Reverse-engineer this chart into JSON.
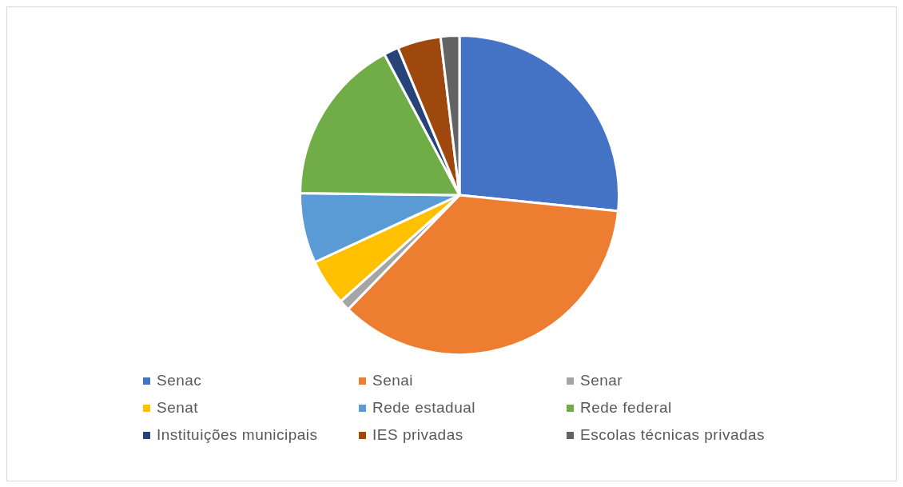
{
  "chart_data": {
    "type": "pie",
    "categories": [
      "Senac",
      "Senai",
      "Senar",
      "Senat",
      "Rede estadual",
      "Rede federal",
      "Instituições municipais",
      "IES privadas",
      "Escolas técnicas privadas"
    ],
    "values": [
      26.6,
      35.7,
      1.1,
      4.7,
      7.1,
      17.0,
      1.5,
      4.4,
      1.9
    ],
    "colors": [
      "#4472c4",
      "#ed7d31",
      "#a5a5a5",
      "#ffc000",
      "#5b9bd5",
      "#70ad47",
      "#264478",
      "#9e480e",
      "#636363"
    ],
    "legend": "bottom"
  }
}
